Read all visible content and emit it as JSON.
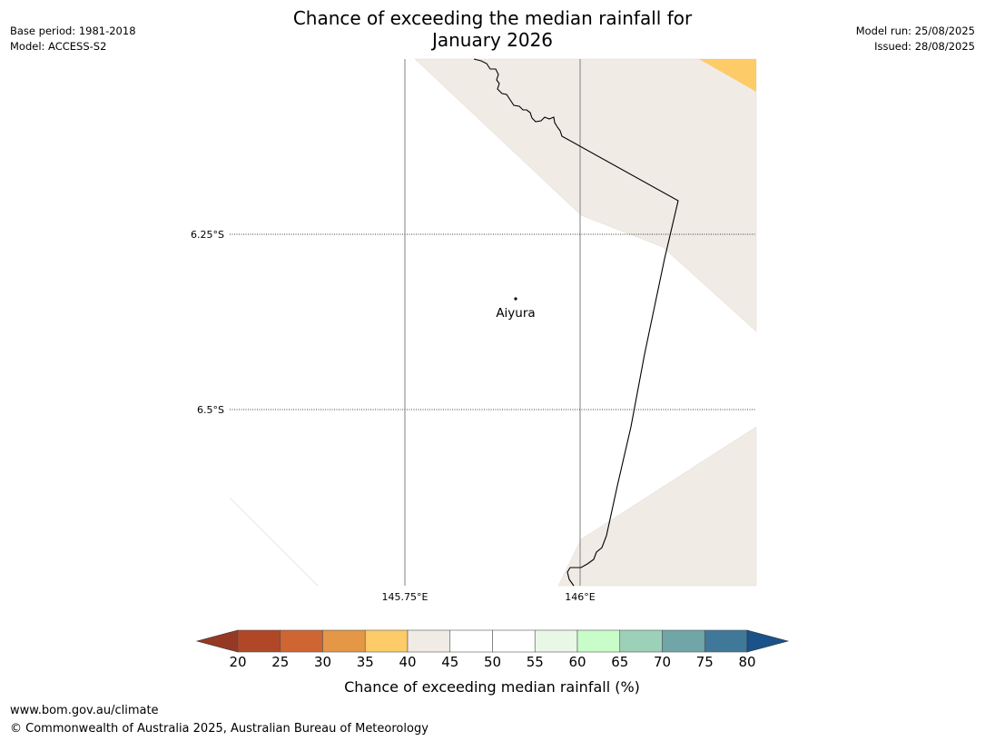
{
  "title": {
    "line1": "Chance of exceeding the median rainfall for",
    "line2": "January 2026"
  },
  "meta_left": {
    "base_period": "Base period: 1981-2018",
    "model": "Model: ACCESS-S2"
  },
  "meta_right": {
    "model_run": "Model run: 25/08/2025",
    "issued": "Issued: 28/08/2025"
  },
  "map": {
    "lat_labels": [
      "6.25°S",
      "6.5°S"
    ],
    "lon_labels": [
      "145.75°E",
      "146°E"
    ],
    "place": {
      "name": "Aiyura"
    },
    "colors": {
      "band_35_40": "#fdcb67",
      "band_40_45": "#f0ebe5",
      "border": "#000000",
      "gridline": "#808080"
    }
  },
  "colorbar": {
    "label": "Chance of exceeding median rainfall (%)",
    "ticks": [
      "20",
      "25",
      "30",
      "35",
      "40",
      "45",
      "50",
      "55",
      "60",
      "65",
      "70",
      "75",
      "80"
    ],
    "colors": [
      "#b04828",
      "#cf6532",
      "#e49747",
      "#fdcb67",
      "#f0ebe5",
      "#ffffff",
      "#ffffff",
      "#e9f7e7",
      "#c8fcc8",
      "#9dd0b9",
      "#70a6a7",
      "#40789a"
    ],
    "extend_low_color": "#953924",
    "extend_high_color": "#1a5289"
  },
  "footer": {
    "url": "www.bom.gov.au/climate",
    "copyright": "© Commonwealth of Australia 2025, Australian Bureau of Meteorology"
  }
}
